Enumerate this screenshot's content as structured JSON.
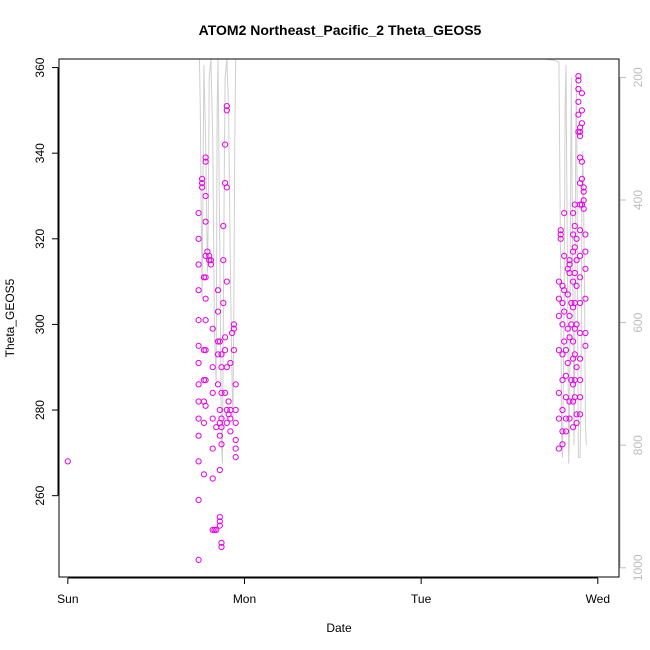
{
  "chart_data": {
    "type": "scatter",
    "title": "ATOM2 Northeast_Pacific_2 Theta_GEOS5",
    "xlabel": "Date",
    "ylabel": "Theta_GEOS5",
    "x_categories": [
      "Sun",
      "Mon",
      "Tue",
      "Wed"
    ],
    "xlim_days": [
      -0.05,
      3.12
    ],
    "ylim": [
      241,
      362
    ],
    "yticks": [
      260,
      280,
      300,
      320,
      340,
      360
    ],
    "right_axis": {
      "ticks": [
        200,
        400,
        600,
        800,
        1000
      ],
      "range": [
        170,
        1015
      ],
      "inverted": true,
      "color": "#bdbdbd"
    },
    "colors": {
      "points": "#e600e6",
      "pressure_line": "#cfcfcf",
      "right_axis": "#bdbdbd"
    },
    "series": [
      {
        "marker": "circle",
        "color": "#e600e6",
        "points": [
          [
            0.0,
            268
          ],
          [
            0.74,
            245
          ],
          [
            0.74,
            259
          ],
          [
            0.74,
            268
          ],
          [
            0.74,
            274
          ],
          [
            0.74,
            278
          ],
          [
            0.74,
            282
          ],
          [
            0.74,
            286
          ],
          [
            0.74,
            291
          ],
          [
            0.74,
            295
          ],
          [
            0.74,
            301
          ],
          [
            0.74,
            308
          ],
          [
            0.74,
            314
          ],
          [
            0.74,
            320
          ],
          [
            0.74,
            326
          ],
          [
            0.76,
            333
          ],
          [
            0.76,
            332
          ],
          [
            0.76,
            334
          ],
          [
            0.77,
            265
          ],
          [
            0.77,
            277
          ],
          [
            0.77,
            282
          ],
          [
            0.77,
            287
          ],
          [
            0.77,
            294
          ],
          [
            0.77,
            311
          ],
          [
            0.78,
            281
          ],
          [
            0.78,
            287
          ],
          [
            0.78,
            294
          ],
          [
            0.78,
            301
          ],
          [
            0.78,
            306
          ],
          [
            0.78,
            311
          ],
          [
            0.78,
            316
          ],
          [
            0.78,
            324
          ],
          [
            0.78,
            330
          ],
          [
            0.78,
            338
          ],
          [
            0.78,
            339
          ],
          [
            0.79,
            317
          ],
          [
            0.8,
            316
          ],
          [
            0.8,
            315
          ],
          [
            0.81,
            314
          ],
          [
            0.81,
            315
          ],
          [
            0.82,
            299
          ],
          [
            0.82,
            290
          ],
          [
            0.82,
            284
          ],
          [
            0.82,
            278
          ],
          [
            0.82,
            271
          ],
          [
            0.82,
            264
          ],
          [
            0.82,
            252
          ],
          [
            0.83,
            252
          ],
          [
            0.84,
            252
          ],
          [
            0.84,
            276
          ],
          [
            0.85,
            286
          ],
          [
            0.85,
            293
          ],
          [
            0.85,
            296
          ],
          [
            0.85,
            303
          ],
          [
            0.85,
            308
          ],
          [
            0.86,
            296
          ],
          [
            0.86,
            280
          ],
          [
            0.86,
            277
          ],
          [
            0.86,
            274
          ],
          [
            0.86,
            266
          ],
          [
            0.86,
            255
          ],
          [
            0.86,
            254
          ],
          [
            0.86,
            253
          ],
          [
            0.87,
            248
          ],
          [
            0.87,
            249
          ],
          [
            0.87,
            272
          ],
          [
            0.87,
            276
          ],
          [
            0.87,
            278
          ],
          [
            0.87,
            284
          ],
          [
            0.87,
            290
          ],
          [
            0.87,
            293
          ],
          [
            0.88,
            315
          ],
          [
            0.88,
            323
          ],
          [
            0.88,
            305
          ],
          [
            0.89,
            342
          ],
          [
            0.89,
            333
          ],
          [
            0.89,
            297
          ],
          [
            0.89,
            294
          ],
          [
            0.89,
            284
          ],
          [
            0.9,
            350
          ],
          [
            0.9,
            351
          ],
          [
            0.9,
            332
          ],
          [
            0.9,
            310
          ],
          [
            0.9,
            290
          ],
          [
            0.9,
            280
          ],
          [
            0.9,
            277
          ],
          [
            0.91,
            279
          ],
          [
            0.91,
            282
          ],
          [
            0.92,
            275
          ],
          [
            0.92,
            278
          ],
          [
            0.92,
            280
          ],
          [
            0.92,
            291
          ],
          [
            0.93,
            298
          ],
          [
            0.94,
            300
          ],
          [
            0.94,
            299
          ],
          [
            0.94,
            294
          ],
          [
            0.95,
            286
          ],
          [
            0.95,
            280
          ],
          [
            0.95,
            277
          ],
          [
            0.95,
            273
          ],
          [
            0.95,
            271
          ],
          [
            0.95,
            269
          ],
          [
            2.78,
            271
          ],
          [
            2.78,
            278
          ],
          [
            2.78,
            284
          ],
          [
            2.78,
            294
          ],
          [
            2.78,
            302
          ],
          [
            2.78,
            306
          ],
          [
            2.78,
            310
          ],
          [
            2.79,
            321
          ],
          [
            2.79,
            322
          ],
          [
            2.79,
            320
          ],
          [
            2.8,
            272
          ],
          [
            2.8,
            275
          ],
          [
            2.8,
            280
          ],
          [
            2.8,
            287
          ],
          [
            2.8,
            293
          ],
          [
            2.8,
            300
          ],
          [
            2.8,
            305
          ],
          [
            2.8,
            309
          ],
          [
            2.81,
            326
          ],
          [
            2.81,
            316
          ],
          [
            2.81,
            308
          ],
          [
            2.81,
            303
          ],
          [
            2.81,
            296
          ],
          [
            2.82,
            294
          ],
          [
            2.82,
            288
          ],
          [
            2.82,
            283
          ],
          [
            2.82,
            278
          ],
          [
            2.82,
            275
          ],
          [
            2.83,
            307
          ],
          [
            2.83,
            313
          ],
          [
            2.83,
            299
          ],
          [
            2.83,
            291
          ],
          [
            2.84,
            315
          ],
          [
            2.84,
            314
          ],
          [
            2.84,
            312
          ],
          [
            2.84,
            302
          ],
          [
            2.84,
            297
          ],
          [
            2.84,
            282
          ],
          [
            2.84,
            278
          ],
          [
            2.85,
            305
          ],
          [
            2.85,
            300
          ],
          [
            2.85,
            287
          ],
          [
            2.86,
            326
          ],
          [
            2.86,
            321
          ],
          [
            2.86,
            317
          ],
          [
            2.86,
            310
          ],
          [
            2.86,
            304
          ],
          [
            2.86,
            296
          ],
          [
            2.86,
            292
          ],
          [
            2.86,
            286
          ],
          [
            2.86,
            282
          ],
          [
            2.86,
            276
          ],
          [
            2.87,
            328
          ],
          [
            2.87,
            323
          ],
          [
            2.87,
            318
          ],
          [
            2.87,
            312
          ],
          [
            2.87,
            305
          ],
          [
            2.87,
            299
          ],
          [
            2.87,
            293
          ],
          [
            2.87,
            287
          ],
          [
            2.87,
            283
          ],
          [
            2.88,
            320
          ],
          [
            2.88,
            315
          ],
          [
            2.88,
            309
          ],
          [
            2.88,
            300
          ],
          [
            2.88,
            290
          ],
          [
            2.88,
            279
          ],
          [
            2.88,
            277
          ],
          [
            2.89,
            345
          ],
          [
            2.89,
            358
          ],
          [
            2.89,
            357
          ],
          [
            2.89,
            355
          ],
          [
            2.89,
            352
          ],
          [
            2.89,
            349
          ],
          [
            2.9,
            346
          ],
          [
            2.9,
            345
          ],
          [
            2.9,
            344
          ],
          [
            2.9,
            339
          ],
          [
            2.9,
            333
          ],
          [
            2.9,
            328
          ],
          [
            2.9,
            322
          ],
          [
            2.9,
            316
          ],
          [
            2.9,
            311
          ],
          [
            2.9,
            305
          ],
          [
            2.9,
            298
          ],
          [
            2.9,
            292
          ],
          [
            2.9,
            287
          ],
          [
            2.9,
            283
          ],
          [
            2.9,
            279
          ],
          [
            2.91,
            354
          ],
          [
            2.91,
            350
          ],
          [
            2.91,
            347
          ],
          [
            2.91,
            338
          ],
          [
            2.91,
            334
          ],
          [
            2.91,
            328
          ],
          [
            2.92,
            327
          ],
          [
            2.92,
            332
          ],
          [
            2.92,
            331
          ],
          [
            2.92,
            329
          ],
          [
            2.93,
            321
          ],
          [
            2.93,
            317
          ],
          [
            2.93,
            313
          ],
          [
            2.93,
            306
          ],
          [
            2.93,
            298
          ],
          [
            2.93,
            295
          ]
        ]
      }
    ]
  }
}
